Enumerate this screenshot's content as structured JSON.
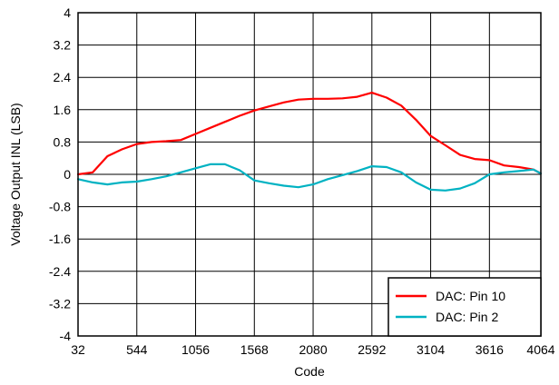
{
  "chart_data": {
    "type": "line",
    "xlabel": "Code",
    "ylabel": "Voltage Output INL (LSB)",
    "xlim": [
      32,
      4064
    ],
    "ylim": [
      -4,
      4
    ],
    "xticks": [
      32,
      544,
      1056,
      1568,
      2080,
      2592,
      3104,
      3616,
      4064
    ],
    "xtick_labels": [
      "32",
      "544",
      "1056",
      "1568",
      "2080",
      "2592",
      "3104",
      "3616",
      "4064"
    ],
    "yticks": [
      4,
      3.2,
      2.4,
      1.6,
      0.8,
      0,
      -0.8,
      -1.6,
      -2.4,
      -3.2,
      -4
    ],
    "ytick_labels": [
      "4",
      "3.2",
      "2.4",
      "1.6",
      "0.8",
      "0",
      "-0.8",
      "-1.6",
      "-2.4",
      "-3.2",
      "-4"
    ],
    "grid": true,
    "legend_position": "bottom-right",
    "series": [
      {
        "name": "DAC: Pin 10",
        "color": "#ff0000",
        "x": [
          32,
          160,
          288,
          416,
          544,
          672,
          800,
          928,
          1056,
          1184,
          1312,
          1440,
          1568,
          1696,
          1824,
          1952,
          2080,
          2208,
          2336,
          2464,
          2592,
          2720,
          2848,
          2976,
          3104,
          3232,
          3360,
          3488,
          3616,
          3744,
          3872,
          4000,
          4064
        ],
        "values": [
          0.0,
          0.05,
          0.45,
          0.62,
          0.75,
          0.8,
          0.82,
          0.85,
          1.0,
          1.15,
          1.3,
          1.45,
          1.58,
          1.68,
          1.78,
          1.85,
          1.87,
          1.87,
          1.88,
          1.92,
          2.02,
          1.9,
          1.7,
          1.35,
          0.95,
          0.72,
          0.48,
          0.38,
          0.35,
          0.22,
          0.18,
          0.12,
          0.02
        ]
      },
      {
        "name": "DAC: Pin 2",
        "color": "#00b2c2",
        "x": [
          32,
          160,
          288,
          416,
          544,
          672,
          800,
          928,
          1056,
          1184,
          1312,
          1440,
          1568,
          1696,
          1824,
          1952,
          2080,
          2208,
          2336,
          2464,
          2592,
          2720,
          2848,
          2976,
          3104,
          3232,
          3360,
          3488,
          3616,
          3744,
          3872,
          4000,
          4064
        ],
        "values": [
          -0.12,
          -0.2,
          -0.25,
          -0.2,
          -0.18,
          -0.12,
          -0.05,
          0.05,
          0.15,
          0.25,
          0.25,
          0.1,
          -0.15,
          -0.22,
          -0.28,
          -0.32,
          -0.25,
          -0.12,
          -0.02,
          0.08,
          0.2,
          0.18,
          0.05,
          -0.2,
          -0.38,
          -0.4,
          -0.35,
          -0.22,
          0.0,
          0.05,
          0.08,
          0.12,
          0.02
        ]
      }
    ]
  }
}
